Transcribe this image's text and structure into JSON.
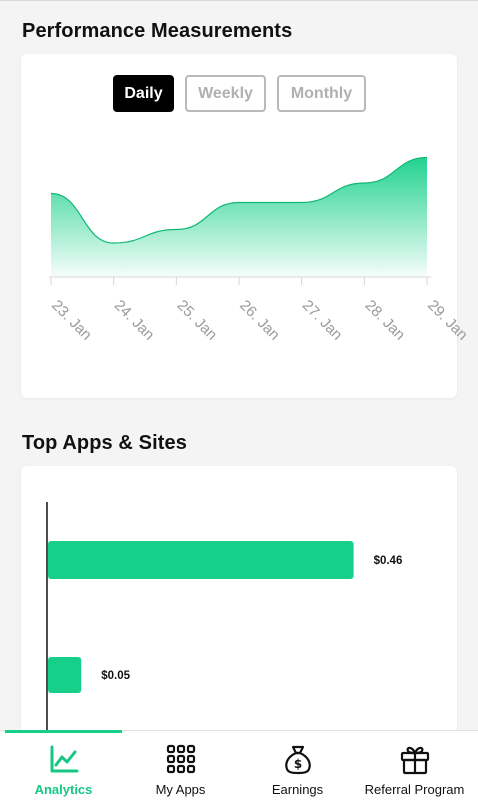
{
  "performance": {
    "title": "Performance Measurements",
    "period_tabs": [
      {
        "label": "Daily",
        "active": true
      },
      {
        "label": "Weekly",
        "active": false
      },
      {
        "label": "Monthly",
        "active": false
      }
    ]
  },
  "top_apps": {
    "title": "Top Apps & Sites"
  },
  "chart_data": [
    {
      "type": "area",
      "categories": [
        "23. Jan",
        "24. Jan",
        "25. Jan",
        "26. Jan",
        "27. Jan",
        "28. Jan",
        "29. Jan"
      ],
      "values": [
        0.55,
        0.22,
        0.31,
        0.49,
        0.49,
        0.62,
        0.79
      ],
      "title": "",
      "xlabel": "",
      "ylabel": "",
      "ylim": [
        0,
        1
      ],
      "grid": false,
      "color": "#16d08a"
    },
    {
      "type": "bar",
      "orientation": "horizontal",
      "values": [
        0.46,
        0.05
      ],
      "labels": [
        "$0.46",
        "$0.05"
      ],
      "xlim": [
        0,
        0.56
      ],
      "color": "#16d08a"
    }
  ],
  "nav": {
    "items": [
      {
        "label": "Analytics",
        "icon": "line-chart-icon",
        "active": true
      },
      {
        "label": "My Apps",
        "icon": "grid-icon",
        "active": false
      },
      {
        "label": "Earnings",
        "icon": "money-bag-icon",
        "active": false
      },
      {
        "label": "Referral Program",
        "icon": "gift-icon",
        "active": false
      }
    ]
  },
  "colors": {
    "accent": "#16d08a",
    "active_tab": "#000000",
    "inactive_tab_border": "#b9b9b9"
  }
}
